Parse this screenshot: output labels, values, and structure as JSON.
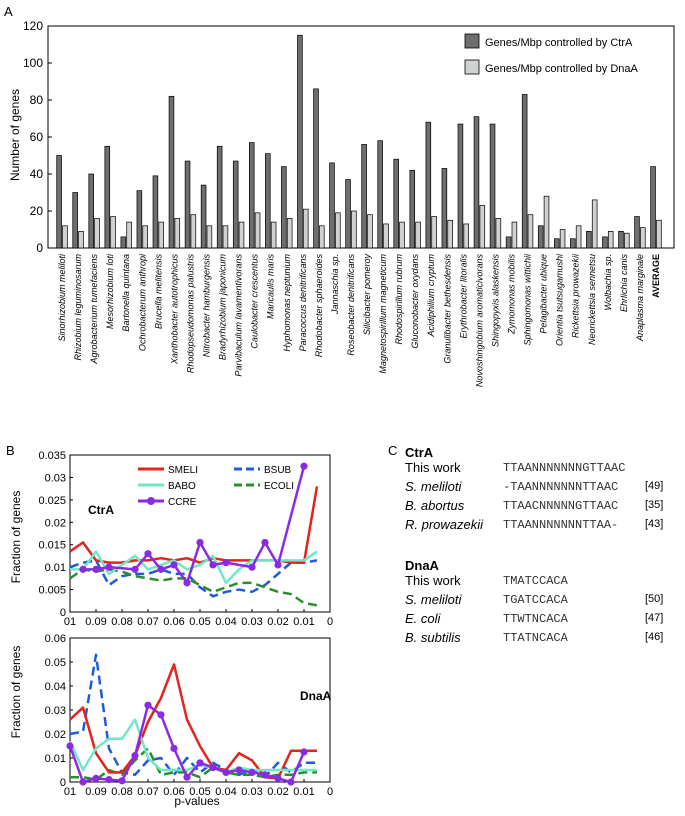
{
  "panels": {
    "a": "A",
    "b": "B",
    "c": "C"
  },
  "chart_data": [
    {
      "type": "bar",
      "title": "",
      "ylabel": "Number of genes",
      "xlabel": "",
      "ylim": [
        0,
        120
      ],
      "yticks": [
        0,
        20,
        40,
        60,
        80,
        100,
        120
      ],
      "legend_position": "top-right",
      "categories": [
        "Sinorhizobium meliloti",
        "Rhizobium leguminosarum",
        "Agrobacterium tumefaciens",
        "Mesorhizobium loti",
        "Bartonella quintana",
        "Ochrobacterum anthropi",
        "Brucella melitensis",
        "Xanthobacter autotrophicus",
        "Rhodopseudomonas palustris",
        "Nitrobacter hamburgensis",
        "Bradyrhizobium japonicum",
        "Parvibaculum lavamentivorans",
        "Caulobacter crescentus",
        "Maricaulis maris",
        "Hyphomonas neptunium",
        "Paracoccus denitrificans",
        "Rhodobacter sphaeroides",
        "Jannaschia sp.",
        "Roseobacter denitrificans",
        "Silicibacter pomeroy",
        "Magnetospirillum magneticum",
        "Rhodospirillum rubrum",
        "Gluconobacter oxydans",
        "Acidiphilium cryptum",
        "Granulibacter bethesdensis",
        "Erythrobacter litoralis",
        "Novoshingobium aromaticivorans",
        "Shingopyxis alaskensis",
        "Zymomonas mobilis",
        "Sphingomonas wittichii",
        "Pelagibacter ubique",
        "Orientia tsutsugamushi",
        "Rickettsia prowazekii",
        "Neorickettsia sennetsu",
        "Wolbachia sp.",
        "Ehrlichia canis",
        "Anaplasma marginale",
        "AVERAGE"
      ],
      "series": [
        {
          "name": "Genes/Mbp controlled by CtrA",
          "color": "#6e6e6e",
          "values": [
            50,
            30,
            40,
            55,
            6,
            31,
            39,
            82,
            47,
            34,
            55,
            47,
            57,
            51,
            44,
            115,
            86,
            46,
            37,
            56,
            58,
            48,
            42,
            68,
            43,
            67,
            71,
            67,
            6,
            83,
            12,
            5,
            5,
            9,
            6,
            9,
            17,
            44
          ]
        },
        {
          "name": "Genes/Mbp controlled by DnaA",
          "color": "#cfd3cf",
          "values": [
            12,
            9,
            16,
            17,
            14,
            12,
            14,
            16,
            18,
            12,
            12,
            14,
            19,
            14,
            16,
            21,
            12,
            19,
            20,
            18,
            13,
            14,
            14,
            17,
            15,
            13,
            23,
            16,
            14,
            18,
            28,
            10,
            12,
            26,
            9,
            8,
            11,
            15
          ]
        }
      ]
    },
    {
      "type": "line",
      "title": "CtrA",
      "xlabel": "",
      "ylabel": "Fraction of genes",
      "ylim": [
        0,
        0.035
      ],
      "yticks": [
        0,
        0.005,
        0.01,
        0.015,
        0.02,
        0.025,
        0.03,
        0.035
      ],
      "xticks": [
        "01",
        "0.09",
        "0.08",
        "0.07",
        "0.06",
        "0.05",
        "0.04",
        "0.03",
        "0.02",
        "0.01",
        "0"
      ],
      "xlim": [
        0.1,
        0
      ],
      "x": [
        0.1,
        0.095,
        0.09,
        0.085,
        0.08,
        0.075,
        0.07,
        0.065,
        0.06,
        0.055,
        0.05,
        0.045,
        0.04,
        0.035,
        0.03,
        0.025,
        0.02,
        0.015,
        0.01,
        0.005
      ],
      "series": [
        {
          "name": "SMELI",
          "color": "#e3231c",
          "style": "solid",
          "values": [
            0.0135,
            0.0155,
            0.0115,
            0.011,
            0.011,
            0.0115,
            0.0115,
            0.012,
            0.0115,
            0.012,
            0.011,
            0.012,
            0.0115,
            0.0115,
            0.0115,
            0.0115,
            0.0115,
            0.011,
            0.011,
            0.028
          ]
        },
        {
          "name": "BABO",
          "color": "#70e8c8",
          "style": "solid",
          "values": [
            0.0095,
            0.0095,
            0.0135,
            0.0085,
            0.0105,
            0.0125,
            0.0095,
            0.0105,
            0.0115,
            0.0095,
            0.0105,
            0.0125,
            0.0065,
            0.0095,
            0.0115,
            0.0115,
            0.0115,
            0.0115,
            0.0115,
            0.0135
          ]
        },
        {
          "name": "CCRE",
          "color": "#8a2be2",
          "style": "marker",
          "values": [
            null,
            0.0095,
            0.0095,
            0.01,
            null,
            0.0095,
            0.013,
            0.0095,
            0.0105,
            0.0065,
            0.0155,
            0.0105,
            0.011,
            null,
            0.01,
            0.0155,
            0.0105,
            null,
            0.0325,
            null
          ]
        },
        {
          "name": "BSUB",
          "color": "#1e5cd6",
          "style": "dashed",
          "values": [
            0.01,
            0.011,
            0.0115,
            0.006,
            0.008,
            0.0085,
            0.0085,
            0.0095,
            0.0085,
            0.0085,
            0.0055,
            0.0035,
            0.0045,
            0.005,
            0.0045,
            0.006,
            0.0085,
            0.011,
            0.011,
            0.0115
          ]
        },
        {
          "name": "ECOLI",
          "color": "#2e8b2e",
          "style": "dashed",
          "values": [
            0.0075,
            0.0095,
            0.009,
            0.0095,
            0.009,
            0.008,
            0.0075,
            0.007,
            0.0075,
            0.0075,
            0.006,
            0.0045,
            0.0055,
            0.0065,
            0.0065,
            0.0055,
            0.0045,
            0.004,
            0.002,
            0.0015
          ]
        }
      ]
    },
    {
      "type": "line",
      "title": "DnaA",
      "xlabel": "p-values",
      "ylabel": "Fraction of genes",
      "ylim": [
        0,
        0.06
      ],
      "yticks": [
        0,
        0.01,
        0.02,
        0.03,
        0.04,
        0.05,
        0.06
      ],
      "xticks": [
        "01",
        "0.09",
        "0.08",
        "0.07",
        "0.06",
        "0.05",
        "0.04",
        "0.03",
        "0.02",
        "0.01",
        "0"
      ],
      "xlim": [
        0.1,
        0
      ],
      "x": [
        0.1,
        0.095,
        0.09,
        0.085,
        0.08,
        0.075,
        0.07,
        0.065,
        0.06,
        0.055,
        0.05,
        0.045,
        0.04,
        0.035,
        0.03,
        0.025,
        0.02,
        0.015,
        0.01,
        0.005
      ],
      "series": [
        {
          "name": "SMELI",
          "color": "#e3231c",
          "style": "solid",
          "values": [
            0.026,
            0.031,
            0.012,
            0.004,
            0.004,
            0.011,
            0.025,
            0.035,
            0.049,
            0.026,
            0.015,
            0.006,
            0.005,
            0.012,
            0.009,
            0.002,
            0.0015,
            0.013,
            0.013,
            0.013
          ]
        },
        {
          "name": "BABO",
          "color": "#70e8c8",
          "style": "solid",
          "values": [
            0.017,
            0.005,
            0.014,
            0.018,
            0.018,
            0.026,
            0.01,
            0.005,
            0.005,
            0.005,
            0.007,
            0.006,
            0.004,
            0.006,
            0.005,
            0.005,
            0.005,
            0.005,
            0.005,
            0.005
          ]
        },
        {
          "name": "CCRE",
          "color": "#8a2be2",
          "style": "marker",
          "values": [
            0.015,
            0.0,
            0.0015,
            0.001,
            0.0005,
            0.011,
            0.032,
            0.028,
            0.014,
            0.002,
            0.008,
            0.006,
            0.004,
            0.005,
            0.004,
            0.003,
            0.0015,
            0.0,
            0.0125,
            null
          ]
        },
        {
          "name": "BSUB",
          "color": "#1e5cd6",
          "style": "dashed",
          "values": [
            0.02,
            0.021,
            0.053,
            0.014,
            0.004,
            0.003,
            0.009,
            0.01,
            0.003,
            0.01,
            0.004,
            0.008,
            0.005,
            0.003,
            0.005,
            0.002,
            0.008,
            0.004,
            0.008,
            0.008
          ]
        },
        {
          "name": "ECOLI",
          "color": "#2e8b2e",
          "style": "dashed",
          "values": [
            0.002,
            0.002,
            0.001,
            0.005,
            0.003,
            0.009,
            0.014,
            0.003,
            0.004,
            0.004,
            0.002,
            0.006,
            0.004,
            0.003,
            0.003,
            0.002,
            0.003,
            0.003,
            0.004,
            0.004
          ]
        }
      ]
    }
  ],
  "consensus": {
    "ctra": {
      "title": "CtrA",
      "rows": [
        {
          "organism": "This work",
          "italic": false,
          "sequence": "TTAANNNNNNNGTTAAC",
          "ref": ""
        },
        {
          "organism": "S. meliloti",
          "italic": true,
          "sequence": "-TAANNNNNNNTTAAC",
          "ref": "[49]"
        },
        {
          "organism": "B. abortus",
          "italic": true,
          "sequence": "TTAACNNNNNGTTAAC",
          "ref": "[35]"
        },
        {
          "organism": "R. prowazekii",
          "italic": true,
          "sequence": "TTAANNNNNNNTTAA-",
          "ref": "[43]"
        }
      ]
    },
    "dnaa": {
      "title": "DnaA",
      "rows": [
        {
          "organism": "This work",
          "italic": false,
          "sequence": "TMATCCACA",
          "ref": ""
        },
        {
          "organism": "S. meliloti",
          "italic": true,
          "sequence": "TGATCCACA",
          "ref": "[50]"
        },
        {
          "organism": "E. coli",
          "italic": true,
          "sequence": "TTWTNCACA",
          "ref": "[47]"
        },
        {
          "organism": "B. subtilis",
          "italic": true,
          "sequence": "TTATNCACA",
          "ref": "[46]"
        }
      ]
    }
  }
}
